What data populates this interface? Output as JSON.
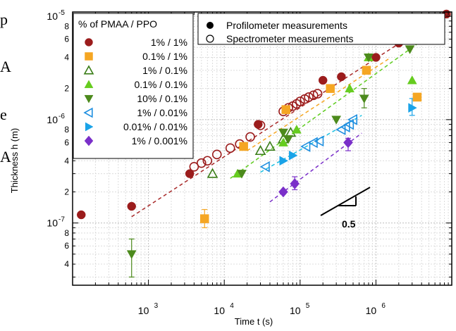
{
  "stray_text": [
    "p",
    "A",
    "e",
    "A"
  ],
  "chart_data": {
    "type": "scatter",
    "title": "",
    "xlabel": "Time t (s)",
    "ylabel": "Thickness h (m)",
    "xscale": "log",
    "yscale": "log",
    "xlim": [
      100,
      10000000
    ],
    "ylim": [
      2.5e-08,
      1.1e-05
    ],
    "grid": true,
    "x_tick_labels": [
      "10^3",
      "10^4",
      "10^5",
      "10^6"
    ],
    "y_tick_labels": [
      "10^-5",
      "8",
      "6",
      "4",
      "2",
      "10^-6",
      "8",
      "6",
      "4",
      "2",
      "10^-7",
      "8",
      "6",
      "4"
    ],
    "legend_location": "top-left and top-right",
    "legend_title": "% of PMAA / PPO",
    "measurement_legend": [
      {
        "label": "Profilometer measurements",
        "marker": "filled-circle"
      },
      {
        "label": "Spectrometer measurements",
        "marker": "open-circle"
      }
    ],
    "slope_label": "0.5",
    "series": [
      {
        "name": "1% / 1%",
        "marker": "circle",
        "color": "#9b1c1c",
        "filled_points": [
          [
            130,
            1.2e-07
          ],
          [
            600,
            1.45e-07
          ],
          [
            3500,
            3e-07
          ],
          [
            28000,
            9e-07
          ],
          [
            200000,
            2.4e-06
          ],
          [
            350000,
            2.6e-06
          ],
          [
            1000000,
            4e-06
          ],
          [
            2000000,
            5.5e-06
          ],
          [
            3500000,
            7e-06
          ],
          [
            8500000,
            1.05e-05
          ]
        ],
        "open_points": [
          [
            4000,
            3.5e-07
          ],
          [
            5000,
            3.8e-07
          ],
          [
            6000,
            4e-07
          ],
          [
            8000,
            4.6e-07
          ],
          [
            12000,
            5.3e-07
          ],
          [
            16000,
            5.8e-07
          ],
          [
            22000,
            6.8e-07
          ],
          [
            30000,
            8.8e-07
          ],
          [
            60000,
            1.2e-06
          ],
          [
            70000,
            1.3e-06
          ],
          [
            80000,
            1.35e-06
          ],
          [
            90000,
            1.42e-06
          ],
          [
            100000,
            1.5e-06
          ],
          [
            115000,
            1.58e-06
          ],
          [
            130000,
            1.65e-06
          ],
          [
            150000,
            1.72e-06
          ],
          [
            170000,
            1.78e-06
          ]
        ]
      },
      {
        "name": "0.1% / 1%",
        "marker": "square",
        "color": "#f5a623",
        "filled_points": [
          [
            5500,
            1.1e-07
          ],
          [
            18000,
            5.5e-07
          ],
          [
            65000,
            1.25e-06
          ],
          [
            250000,
            2e-06
          ],
          [
            750000,
            3e-06
          ],
          [
            3500000,
            1.65e-06
          ]
        ],
        "error_bars": [
          [
            5500,
            9e-08,
            1.35e-07
          ]
        ]
      },
      {
        "name": "1% / 0.1%",
        "marker": "triangle-up-open",
        "color": "#3a7d18",
        "open_points": [
          [
            7000,
            3e-07
          ],
          [
            30000,
            5e-07
          ],
          [
            40000,
            5.5e-07
          ],
          [
            60000,
            6.5e-07
          ],
          [
            75000,
            7.5e-07
          ]
        ]
      },
      {
        "name": "0.1% / 0.1%",
        "marker": "triangle-up",
        "color": "#66cc1f",
        "filled_points": [
          [
            15000,
            3e-07
          ],
          [
            60000,
            6e-07
          ],
          [
            90000,
            8e-07
          ],
          [
            450000,
            2e-06
          ],
          [
            800000,
            4e-06
          ],
          [
            3000000,
            2.4e-06
          ]
        ]
      },
      {
        "name": "10% / 0.1%",
        "marker": "triangle-down",
        "color": "#4c8a1c",
        "filled_points": [
          [
            600,
            5e-08
          ],
          [
            17000,
            3e-07
          ],
          [
            60000,
            7.5e-07
          ],
          [
            70000,
            6.5e-07
          ],
          [
            300000,
            1e-06
          ],
          [
            700000,
            1.6e-06
          ],
          [
            800000,
            4e-06
          ],
          [
            2800000,
            4.8e-06
          ]
        ],
        "error_bars": [
          [
            600,
            3e-08,
            7e-08
          ],
          [
            700000,
            1.3e-06,
            2e-06
          ]
        ]
      },
      {
        "name": "1% / 0.01%",
        "marker": "triangle-left-open",
        "color": "#1f8fe0",
        "open_points": [
          [
            35000,
            3.5e-07
          ],
          [
            120000,
            5.5e-07
          ],
          [
            150000,
            6e-07
          ],
          [
            180000,
            6.2e-07
          ],
          [
            350000,
            8e-07
          ],
          [
            400000,
            8.5e-07
          ],
          [
            450000,
            9e-07
          ],
          [
            500000,
            1e-06
          ]
        ]
      },
      {
        "name": "0.01% / 0.01%",
        "marker": "triangle-right",
        "color": "#1aa3e8",
        "filled_points": [
          [
            60000,
            4e-07
          ],
          [
            80000,
            4.5e-07
          ],
          [
            3000000,
            1.3e-06
          ]
        ],
        "error_bars": [
          [
            3000000,
            1.1e-06,
            1.6e-06
          ]
        ]
      },
      {
        "name": "1% / 0.001%",
        "marker": "diamond",
        "color": "#7a2fc9",
        "filled_points": [
          [
            60000,
            2e-07
          ],
          [
            85000,
            2.4e-07
          ],
          [
            430000,
            6e-07
          ]
        ],
        "error_bars": [
          [
            85000,
            2.1e-07,
            2.8e-07
          ],
          [
            430000,
            5e-07,
            6.6e-07
          ]
        ]
      }
    ],
    "fit_lines": [
      {
        "color": "#a82828",
        "from": [
          600,
          1.15e-07
        ],
        "to": [
          8000000,
          1.05e-05
        ]
      },
      {
        "color": "#f5a623",
        "from": [
          20000,
          5e-07
        ],
        "to": [
          1500000,
          3.9e-06
        ]
      },
      {
        "color": "#5fcc1f",
        "from": [
          12000,
          2.7e-07
        ],
        "to": [
          3500000,
          5.4e-06
        ]
      },
      {
        "color": "#1cc0e0",
        "from": [
          30000,
          3.1e-07
        ],
        "to": [
          650000,
          1.1e-06
        ]
      },
      {
        "color": "#7a2fc9",
        "from": [
          40000,
          1.6e-07
        ],
        "to": [
          650000,
          7.4e-07
        ]
      }
    ]
  }
}
